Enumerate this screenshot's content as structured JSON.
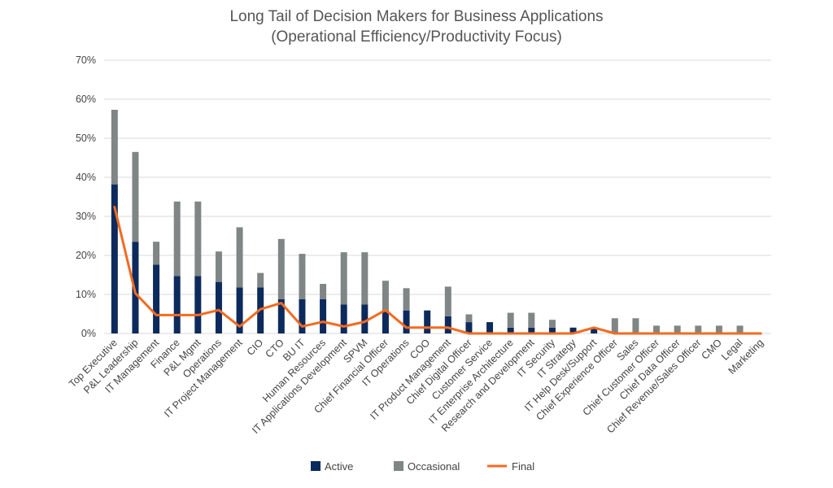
{
  "chart_data": {
    "type": "bar",
    "stacked": true,
    "title": "Long Tail of Decision Makers for Business Applications",
    "subtitle": "(Operational Efficiency/Productivity Focus)",
    "xlabel": "",
    "ylabel": "",
    "ylim": [
      0,
      70
    ],
    "yticks": [
      "0%",
      "10%",
      "20%",
      "30%",
      "40%",
      "50%",
      "60%",
      "70%"
    ],
    "grid": true,
    "legend_position": "bottom",
    "categories": [
      "Top Executive",
      "P&L Leadership",
      "IT Management",
      "Finance",
      "P&L Mgmt",
      "Operations",
      "IT Project Management",
      "CIO",
      "CTO",
      "BU IT",
      "Human Resources",
      "IT Applications Development",
      "SPVM",
      "Chief Financial Officer",
      "IT Operations",
      "COO",
      "IT Product Management",
      "Chief Digital Officer",
      "Customer Service",
      "IT Enterprise Architecture",
      "Research and Development",
      "IT Security",
      "IT Strategy",
      "IT Help Desk/Support",
      "Chief Experience Officer",
      "Sales",
      "Chief Customer Officer",
      "Chief Data Officer",
      "Chief Revenue/Sales Officer",
      "CMO",
      "Legal",
      "Marketing"
    ],
    "series": [
      {
        "name": "Active",
        "type": "bar",
        "color": "#0d2a5c",
        "values": [
          38.2,
          23.5,
          17.6,
          14.7,
          14.7,
          13.2,
          11.8,
          11.8,
          8.8,
          8.8,
          8.8,
          7.4,
          7.4,
          5.9,
          5.9,
          5.9,
          4.4,
          2.9,
          2.9,
          1.5,
          1.5,
          1.5,
          1.5,
          1.5,
          0,
          0,
          0,
          0,
          0,
          0,
          0,
          0
        ]
      },
      {
        "name": "Occasional",
        "type": "bar",
        "color": "#7f8685",
        "values": [
          19.1,
          23.0,
          5.9,
          19.1,
          19.1,
          7.8,
          15.4,
          3.7,
          15.4,
          11.6,
          3.9,
          13.4,
          13.4,
          7.6,
          5.7,
          0,
          7.6,
          2.0,
          0,
          3.8,
          3.8,
          2.0,
          0,
          0,
          3.9,
          3.9,
          2.0,
          2.0,
          2.0,
          2.0,
          2.0,
          0
        ]
      },
      {
        "name": "Final",
        "type": "line",
        "color": "#f26b21",
        "values": [
          32.4,
          10.3,
          4.7,
          4.7,
          4.7,
          6.0,
          1.8,
          6.2,
          7.8,
          1.8,
          3.0,
          1.8,
          3.0,
          6.0,
          1.5,
          1.5,
          1.5,
          0,
          0,
          0,
          0,
          0,
          0,
          1.5,
          0,
          0,
          0,
          0,
          0,
          0,
          0,
          0
        ]
      }
    ]
  }
}
